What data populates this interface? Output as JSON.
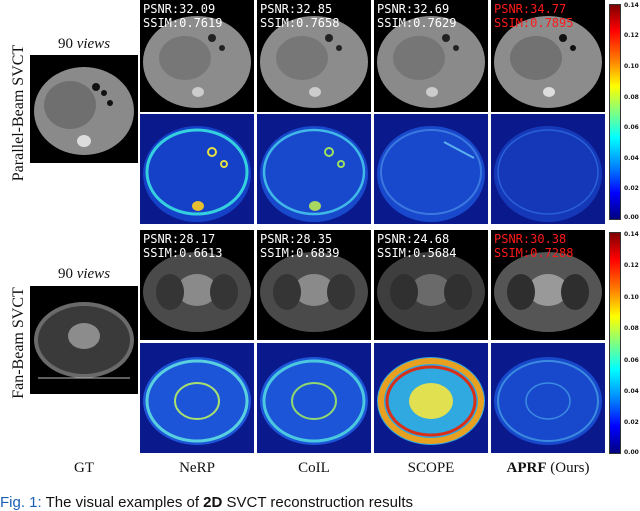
{
  "row_labels": [
    "Parallel-Beam SVCT",
    "Fan-Beam SVCT"
  ],
  "views_label": {
    "number": "90",
    "word": "views"
  },
  "column_labels": [
    "GT",
    "NeRP",
    "CoIL",
    "SCOPE",
    "APRF",
    "(Ours)"
  ],
  "parallel_metrics": [
    {
      "psnr": "PSNR:32.09",
      "ssim": "SSIM:0.7619"
    },
    {
      "psnr": "PSNR:32.85",
      "ssim": "SSIM:0.7658"
    },
    {
      "psnr": "PSNR:32.69",
      "ssim": "SSIM:0.7629"
    },
    {
      "psnr": "PSNR:34.77",
      "ssim": "SSIM:0.7895"
    }
  ],
  "fan_metrics": [
    {
      "psnr": "PSNR:28.17",
      "ssim": "SSIM:0.6613"
    },
    {
      "psnr": "PSNR:28.35",
      "ssim": "SSIM:0.6839"
    },
    {
      "psnr": "PSNR:24.68",
      "ssim": "SSIM:0.5684"
    },
    {
      "psnr": "PSNR:30.38",
      "ssim": "SSIM:0.7288"
    }
  ],
  "colorbar_ticks": [
    "0.14",
    "0.12",
    "0.10",
    "0.08",
    "0.06",
    "0.04",
    "0.02",
    "0.00"
  ],
  "caption": {
    "fig": "Fig. 1",
    "dots": ":",
    "text": "The visual examples of",
    "bold": "2D",
    "rest": "SVCT reconstruction results"
  },
  "colors": {
    "best": "#ff1a1a",
    "caption": "#1a5fb4"
  }
}
